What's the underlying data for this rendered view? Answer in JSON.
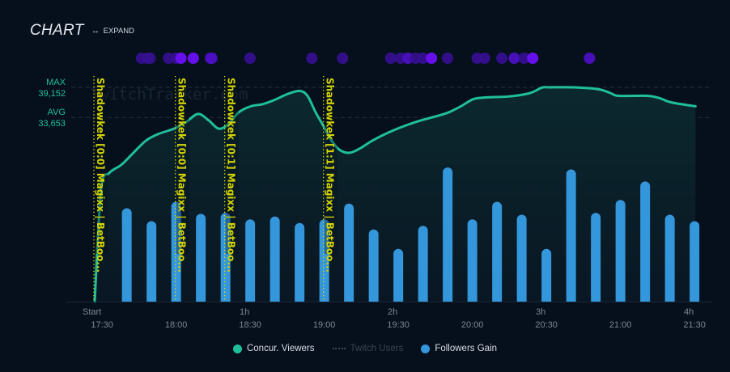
{
  "header": {
    "title": "CHART",
    "expand_label": "EXPAND",
    "expand_icon": "horizontal-double-arrow"
  },
  "reference_lines": {
    "max_label": "MAX",
    "max_value_text": "39,152",
    "avg_label": "AVG",
    "avg_value_text": "33,653"
  },
  "watermark": "TwitchTracker.com",
  "colors": {
    "viewers": "#1fbf9b",
    "followers": "#3497dc",
    "annotation": "#e6e600",
    "event_dot": "#5a12e0",
    "background": "#06101d"
  },
  "legend": [
    {
      "label": "Concur. Viewers",
      "key": "viewers",
      "enabled": true
    },
    {
      "label": "Twitch Users",
      "key": "twitch_users",
      "enabled": false
    },
    {
      "label": "Followers Gain",
      "key": "followers",
      "enabled": true
    }
  ],
  "chart_data": {
    "type": "line",
    "title": "CHART",
    "xlabel": "",
    "ylabel": "",
    "x_unit": "minutes since stream start",
    "xlim": [
      0,
      242
    ],
    "ylim": [
      0,
      39152
    ],
    "duration_ticks": [
      {
        "t": 0,
        "label": "Start"
      },
      {
        "t": 60,
        "label": "1h"
      },
      {
        "t": 120,
        "label": "2h"
      },
      {
        "t": 180,
        "label": "3h"
      },
      {
        "t": 240,
        "label": "4h"
      }
    ],
    "clock_ticks": [
      {
        "t": 3,
        "label": "17:30"
      },
      {
        "t": 33,
        "label": "18:00"
      },
      {
        "t": 63,
        "label": "18:30"
      },
      {
        "t": 93,
        "label": "19:00"
      },
      {
        "t": 123,
        "label": "19:30"
      },
      {
        "t": 153,
        "label": "20:00"
      },
      {
        "t": 183,
        "label": "20:30"
      },
      {
        "t": 213,
        "label": "21:00"
      },
      {
        "t": 243,
        "label": "21:30"
      }
    ],
    "max": 39152,
    "avg": 33653,
    "series": [
      {
        "name": "Concur. Viewers",
        "type": "area",
        "points": [
          [
            0,
            0
          ],
          [
            2.6,
            20500
          ],
          [
            5.9,
            23500
          ],
          [
            10.8,
            25000
          ],
          [
            15.7,
            27200
          ],
          [
            20.7,
            29400
          ],
          [
            25.6,
            30600
          ],
          [
            32.1,
            31600
          ],
          [
            37,
            32800
          ],
          [
            41.9,
            34300
          ],
          [
            46.2,
            33100
          ],
          [
            50.2,
            31600
          ],
          [
            54.1,
            32400
          ],
          [
            58.4,
            34600
          ],
          [
            63.3,
            35700
          ],
          [
            68.2,
            36100
          ],
          [
            73.1,
            36900
          ],
          [
            78,
            37900
          ],
          [
            83,
            38500
          ],
          [
            86.2,
            37600
          ],
          [
            89.5,
            34600
          ],
          [
            92.8,
            32000
          ],
          [
            96,
            29400
          ],
          [
            99.3,
            27700
          ],
          [
            103.3,
            27200
          ],
          [
            107.5,
            28000
          ],
          [
            112.4,
            29400
          ],
          [
            119,
            30900
          ],
          [
            125.5,
            32100
          ],
          [
            132.1,
            33100
          ],
          [
            138.6,
            33900
          ],
          [
            143.5,
            34600
          ],
          [
            148.4,
            35700
          ],
          [
            153.4,
            37000
          ],
          [
            158.3,
            37300
          ],
          [
            168.1,
            37500
          ],
          [
            176.3,
            38100
          ],
          [
            181.2,
            39100
          ],
          [
            184.5,
            39152
          ],
          [
            194.3,
            39152
          ],
          [
            204.1,
            38800
          ],
          [
            209,
            38100
          ],
          [
            212.3,
            37600
          ],
          [
            223.8,
            37600
          ],
          [
            228.7,
            37200
          ],
          [
            233.6,
            36400
          ],
          [
            243.4,
            35700
          ]
        ]
      },
      {
        "name": "Followers Gain",
        "type": "bar",
        "unit": "relative",
        "t": [
          13,
          23,
          33,
          43,
          53,
          63,
          73,
          83,
          93,
          103,
          113,
          123,
          133,
          143,
          153,
          163,
          173,
          183,
          193,
          203,
          213,
          223,
          233,
          243
        ],
        "values": [
          101,
          87,
          108,
          95,
          96,
          89,
          92,
          85,
          89,
          106,
          78,
          57,
          82,
          145,
          89,
          108,
          94,
          57,
          143,
          96,
          110,
          130,
          94,
          87
        ]
      }
    ],
    "annotations": [
      {
        "t": 0,
        "text": "Shadowkek [0:0] Magixx | BetBoo..."
      },
      {
        "t": 33,
        "text": "Shadowkek [0:0] Magixx | BetBoo..."
      },
      {
        "t": 53,
        "text": "Shadowkek [0:1] Magixx | BetBoo..."
      },
      {
        "t": 93,
        "text": "Shadowkek [1:1] Magixx | BetBoo..."
      }
    ],
    "events": [
      {
        "t": 16,
        "intensity": 0.35
      },
      {
        "t": 18.5,
        "intensity": 0.4
      },
      {
        "t": 19.5,
        "intensity": 0.35
      },
      {
        "t": 27,
        "intensity": 0.35
      },
      {
        "t": 30,
        "intensity": 0.4
      },
      {
        "t": 32,
        "intensity": 0.9
      },
      {
        "t": 37,
        "intensity": 1.0
      },
      {
        "t": 44,
        "intensity": 0.5
      },
      {
        "t": 44.5,
        "intensity": 0.6
      },
      {
        "t": 60,
        "intensity": 0.35
      },
      {
        "t": 85,
        "intensity": 0.35
      },
      {
        "t": 97.5,
        "intensity": 0.35
      },
      {
        "t": 117,
        "intensity": 0.4
      },
      {
        "t": 121,
        "intensity": 0.35
      },
      {
        "t": 124,
        "intensity": 0.55
      },
      {
        "t": 127,
        "intensity": 0.35
      },
      {
        "t": 130,
        "intensity": 0.35
      },
      {
        "t": 133.5,
        "intensity": 1.0
      },
      {
        "t": 140,
        "intensity": 0.4
      },
      {
        "t": 152,
        "intensity": 0.35
      },
      {
        "t": 155,
        "intensity": 0.4
      },
      {
        "t": 162,
        "intensity": 0.4
      },
      {
        "t": 167,
        "intensity": 0.55
      },
      {
        "t": 171,
        "intensity": 0.45
      },
      {
        "t": 174.5,
        "intensity": 1.0
      },
      {
        "t": 197.5,
        "intensity": 0.6
      }
    ]
  }
}
